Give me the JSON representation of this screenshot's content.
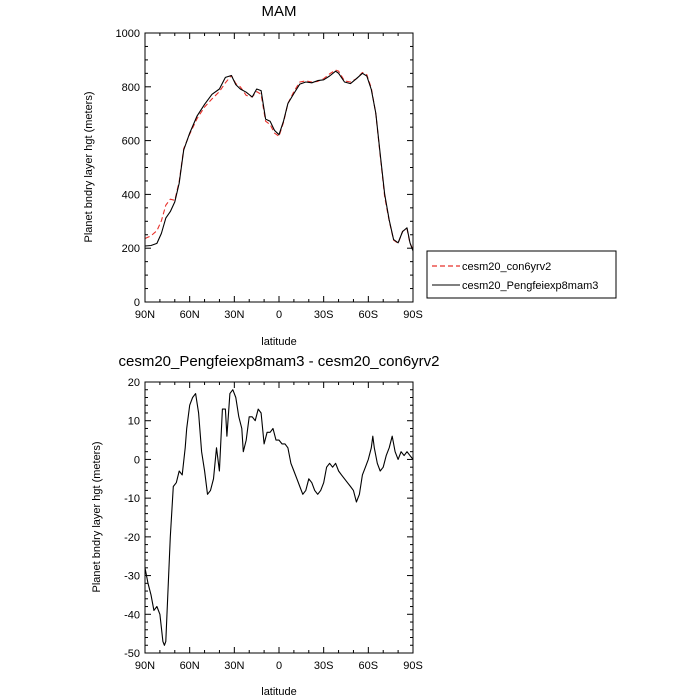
{
  "chart_data": [
    {
      "type": "line",
      "title": "MAM",
      "xlabel": "latitude",
      "ylabel": "Planet bndry layer hgt (meters)",
      "xlim": [
        90,
        -90
      ],
      "ylim": [
        0,
        1000
      ],
      "x_ticks": [
        90,
        60,
        30,
        0,
        -30,
        -60,
        -90
      ],
      "x_tick_labels": [
        "90N",
        "60N",
        "30N",
        "0",
        "30S",
        "60S",
        "90S"
      ],
      "y_ticks": [
        0,
        200,
        400,
        600,
        800,
        1000
      ],
      "y_tick_labels": [
        "0",
        "200",
        "400",
        "600",
        "800",
        "1000"
      ],
      "legend": {
        "placement": "right",
        "entries": [
          "cesm20_con6yrv2",
          "cesm20_Pengfeiexp8mam3"
        ]
      },
      "series": [
        {
          "name": "cesm20_con6yrv2",
          "color": "#e8302a",
          "dash": "dashed",
          "x": [
            90,
            86,
            82,
            79,
            76,
            73,
            70,
            67,
            64,
            60,
            55,
            50,
            45,
            40,
            36,
            32,
            29,
            26,
            22,
            18,
            15,
            12,
            9,
            6,
            3,
            0,
            -3,
            -6,
            -10,
            -14,
            -18,
            -22,
            -26,
            -30,
            -34,
            -38,
            -40,
            -44,
            -48,
            -52,
            -56,
            -59,
            -62,
            -65,
            -68,
            -71,
            -74,
            -77,
            -80,
            -83,
            -86,
            -88,
            -90
          ],
          "y": [
            236,
            246,
            265,
            302,
            360,
            382,
            378,
            448,
            570,
            624,
            682,
            725,
            755,
            782,
            815,
            842,
            812,
            800,
            768,
            762,
            782,
            772,
            672,
            660,
            628,
            616,
            668,
            738,
            782,
            818,
            822,
            818,
            820,
            830,
            848,
            862,
            858,
            822,
            818,
            830,
            853,
            845,
            795,
            700,
            545,
            390,
            302,
            230,
            218,
            263,
            272,
            218,
            196
          ]
        },
        {
          "name": "cesm20_Pengfeiexp8mam3",
          "color": "#000000",
          "dash": "solid",
          "x": [
            90,
            86,
            82,
            79,
            76,
            73,
            70,
            67,
            64,
            60,
            55,
            50,
            45,
            40,
            36,
            32,
            29,
            26,
            22,
            18,
            15,
            12,
            9,
            6,
            3,
            0,
            -3,
            -6,
            -10,
            -14,
            -18,
            -22,
            -26,
            -30,
            -34,
            -38,
            -40,
            -44,
            -48,
            -52,
            -56,
            -59,
            -62,
            -65,
            -68,
            -71,
            -74,
            -77,
            -80,
            -83,
            -86,
            -88,
            -90
          ],
          "y": [
            208,
            210,
            218,
            255,
            312,
            336,
            372,
            442,
            565,
            628,
            692,
            735,
            772,
            792,
            835,
            842,
            808,
            792,
            780,
            762,
            792,
            786,
            680,
            672,
            638,
            622,
            672,
            738,
            775,
            810,
            818,
            815,
            823,
            826,
            840,
            858,
            850,
            818,
            812,
            830,
            850,
            840,
            790,
            702,
            550,
            400,
            305,
            232,
            220,
            262,
            276,
            220,
            190
          ]
        }
      ]
    },
    {
      "type": "line",
      "title": "cesm20_Pengfeiexp8mam3 - cesm20_con6yrv2",
      "xlabel": "latitude",
      "ylabel": "Planet bndry layer hgt (meters)",
      "xlim": [
        90,
        -90
      ],
      "ylim": [
        -50,
        20
      ],
      "x_ticks": [
        90,
        60,
        30,
        0,
        -30,
        -60,
        -90
      ],
      "x_tick_labels": [
        "90N",
        "60N",
        "30N",
        "0",
        "30S",
        "60S",
        "90S"
      ],
      "y_ticks": [
        -50,
        -40,
        -30,
        -20,
        -10,
        0,
        10,
        20
      ],
      "y_tick_labels": [
        "-50",
        "-40",
        "-30",
        "-20",
        "-10",
        "0",
        "10",
        "20"
      ],
      "series": [
        {
          "name": "cesm20_Pengfeiexp8mam3 - cesm20_con6yrv2",
          "color": "#000000",
          "dash": "solid",
          "x": [
            90,
            88,
            86,
            84,
            82,
            80,
            78,
            77,
            76,
            75,
            73,
            71,
            69,
            67,
            65,
            63,
            62,
            60,
            58,
            56,
            54,
            52,
            50,
            48,
            46,
            44,
            42,
            40,
            38,
            36,
            35,
            33,
            31,
            29,
            27,
            25,
            24,
            22,
            20,
            18,
            16,
            14,
            12,
            10,
            8,
            6,
            4,
            2,
            0,
            -2,
            -4,
            -6,
            -8,
            -10,
            -12,
            -14,
            -16,
            -18,
            -20,
            -22,
            -24,
            -26,
            -28,
            -30,
            -32,
            -34,
            -36,
            -38,
            -40,
            -42,
            -44,
            -46,
            -48,
            -50,
            -52,
            -54,
            -56,
            -58,
            -60,
            -62,
            -63,
            -64,
            -66,
            -68,
            -70,
            -72,
            -74,
            -76,
            -78,
            -80,
            -82,
            -84,
            -86,
            -88,
            -90
          ],
          "y": [
            -28,
            -32,
            -35,
            -39,
            -38,
            -40,
            -47,
            -48,
            -47,
            -38,
            -20,
            -7,
            -6,
            -3,
            -4,
            3,
            8,
            14,
            16,
            17,
            12,
            2,
            -3,
            -9,
            -8,
            -5,
            3,
            -3,
            13,
            13,
            6,
            17,
            18,
            16,
            11,
            8,
            2,
            5,
            11,
            11,
            10,
            13,
            12,
            4,
            7,
            7,
            8,
            5,
            5,
            4,
            4,
            3,
            -1,
            -3,
            -5,
            -7,
            -9,
            -8,
            -5,
            -6,
            -8,
            -9,
            -8,
            -6,
            -2,
            -1,
            -2,
            -1,
            -3,
            -4,
            -5,
            -6,
            -7,
            -8,
            -11,
            -9,
            -4,
            -2,
            0,
            3,
            6,
            3,
            -1,
            -3,
            -2,
            1,
            3,
            6,
            2,
            0,
            2,
            1,
            2,
            1,
            0
          ]
        }
      ]
    }
  ]
}
